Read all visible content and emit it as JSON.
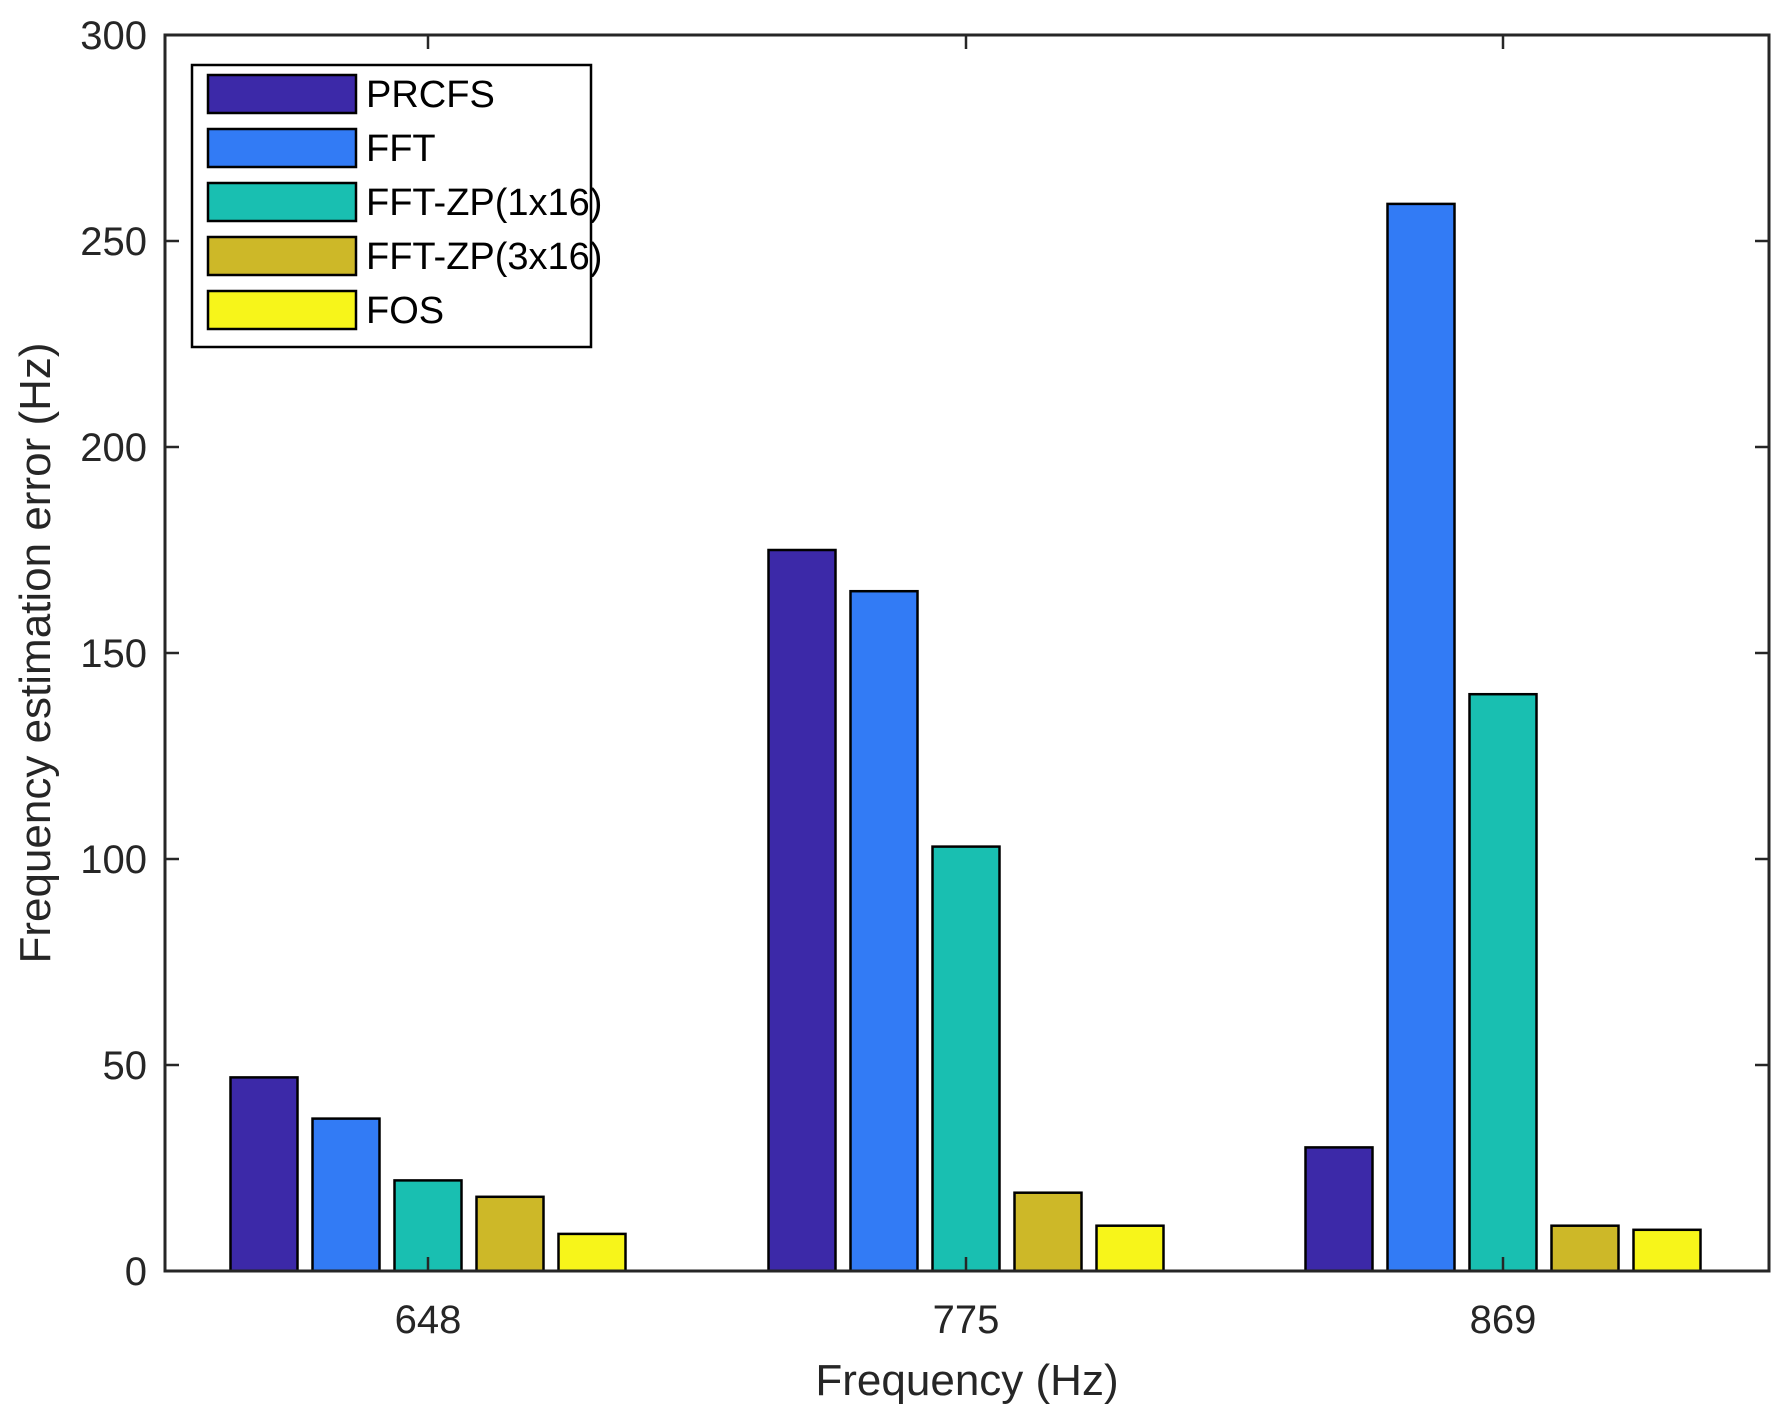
{
  "chart_data": {
    "type": "bar",
    "title": "",
    "xlabel": "Frequency (Hz)",
    "ylabel": "Frequency estimation error (Hz)",
    "categories": [
      "648",
      "775",
      "869"
    ],
    "ylim": [
      0,
      300
    ],
    "yticks": [
      0,
      50,
      100,
      150,
      200,
      250,
      300
    ],
    "grid": false,
    "legend_position": "top-left",
    "series": [
      {
        "name": "PRCFS",
        "color": "#3C29A8",
        "values": [
          47,
          175,
          30
        ]
      },
      {
        "name": "FFT",
        "color": "#327BF5",
        "values": [
          37,
          165,
          259
        ]
      },
      {
        "name": "FFT-ZP(1x16)",
        "color": "#19BFB1",
        "values": [
          22,
          103,
          140
        ]
      },
      {
        "name": "FFT-ZP(3x16)",
        "color": "#CDB828",
        "values": [
          18,
          19,
          11
        ]
      },
      {
        "name": "FOS",
        "color": "#F7F51A",
        "values": [
          9,
          11,
          10
        ]
      }
    ]
  }
}
